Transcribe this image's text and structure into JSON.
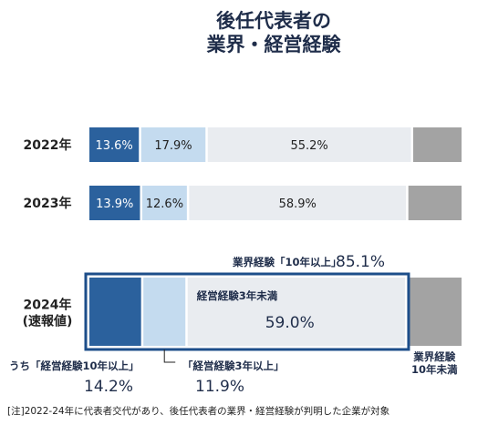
{
  "chart_data": {
    "type": "bar",
    "stacked": "horizontal-100",
    "title": [
      "後任代表者の",
      "業界・経営経験"
    ],
    "categories": [
      "2022年",
      "2023年",
      "2024年"
    ],
    "category_sublabels": [
      "",
      "",
      "(速報値)"
    ],
    "series": [
      {
        "key": "s1",
        "values": [
          13.6,
          13.9,
          14.2
        ],
        "color": "#2b619d"
      },
      {
        "key": "s2",
        "values": [
          17.9,
          12.6,
          11.9
        ],
        "color": "#c4dbef"
      },
      {
        "key": "s3",
        "values": [
          55.2,
          58.9,
          59.0
        ],
        "color": "#e9ecf0"
      },
      {
        "key": "s4",
        "values": [
          13.3,
          14.6,
          14.9
        ],
        "color": "#a3a3a3"
      }
    ],
    "value_labels": [
      [
        "13.6%",
        "17.9%",
        "55.2%",
        ""
      ],
      [
        "13.9%",
        "12.6%",
        "58.9%",
        ""
      ],
      [
        "",
        "",
        "",
        ""
      ]
    ],
    "annotations": {
      "industry10_label": "業界経験「10年以上」",
      "industry10_value": "85.1%",
      "mgmt_under3_label": "経営経験3年未満",
      "mgmt_under3_value": "59.0%",
      "inner_mgmt10_label": "うち「経営経験10年以上」",
      "inner_mgmt10_value": "14.2%",
      "mgmt3_label": "「経営経験3年以上」",
      "mgmt3_value": "11.9%",
      "industry_under10_label": [
        "業界経験",
        "10年未満"
      ]
    },
    "note": "[注]2022-24年に代表者交代があり、後任代表者の業界・経営経験が判明した企業が対象",
    "highlight_color": "#1d4e8a",
    "xlim": [
      0,
      100
    ]
  }
}
